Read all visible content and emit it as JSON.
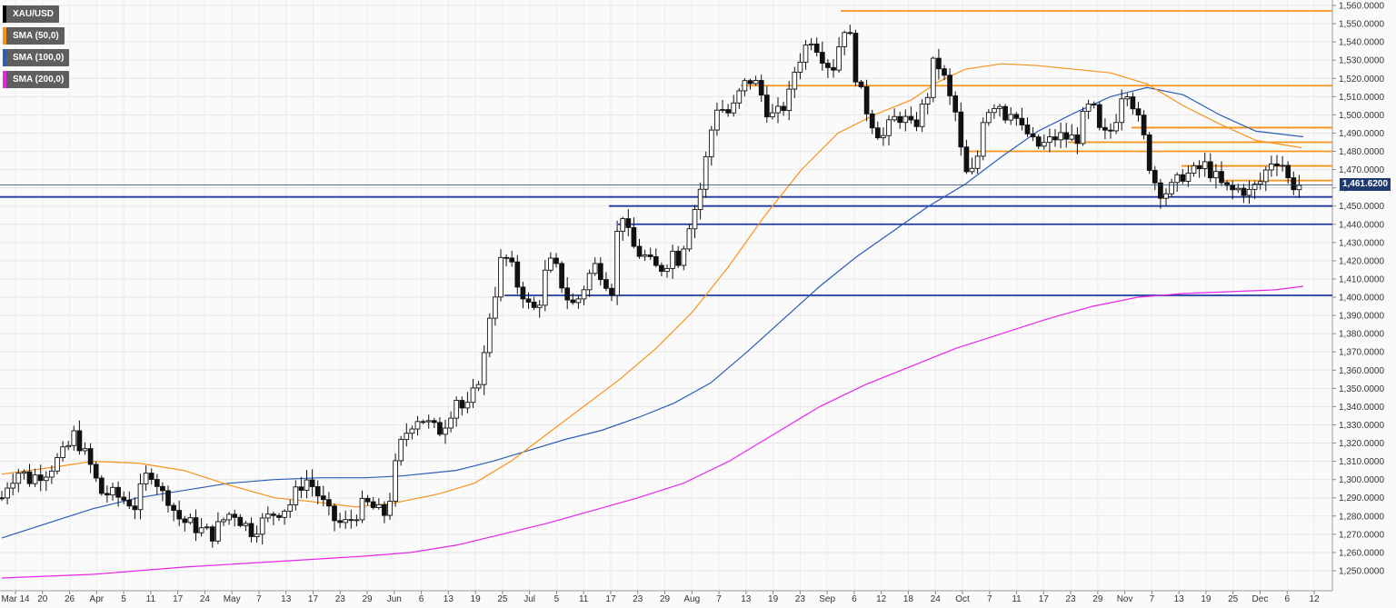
{
  "chart_data": {
    "type": "candlestick",
    "title": "XAU/USD",
    "symbol": "XAU/USD",
    "timeframe": "daily",
    "y_axis_side": "right",
    "ylim": [
      1245,
      1565
    ],
    "y_tick_step": 10,
    "y_tick_format": "0,000.0000",
    "last_price_label": "1,461.6200",
    "last_price": 1461.62,
    "x_tick_labels": [
      "Mar 14",
      "20",
      "26",
      "Apr",
      "5",
      "11",
      "17",
      "24",
      "May",
      "7",
      "13",
      "17",
      "23",
      "29",
      "Jun",
      "6",
      "13",
      "19",
      "25",
      "Jul",
      "5",
      "11",
      "17",
      "23",
      "29",
      "Aug",
      "7",
      "13",
      "19",
      "23",
      "Sep",
      "6",
      "12",
      "18",
      "24",
      "Oct",
      "7",
      "11",
      "17",
      "23",
      "29",
      "Nov",
      "7",
      "13",
      "19",
      "25",
      "Dec",
      "6",
      "12"
    ],
    "legend": [
      {
        "label": "XAU/USD",
        "color": "#000000"
      },
      {
        "label": "SMA (50,0)",
        "color": "#f7931a"
      },
      {
        "label": "SMA (100,0)",
        "color": "#2b5cb8"
      },
      {
        "label": "SMA (200,0)",
        "color": "#e826e8"
      }
    ],
    "close_path": [
      [
        0,
        1290
      ],
      [
        8,
        1300
      ],
      [
        20,
        1305
      ],
      [
        30,
        1300
      ],
      [
        40,
        1303
      ],
      [
        50,
        1305
      ],
      [
        60,
        1310
      ],
      [
        70,
        1315
      ],
      [
        80,
        1325
      ],
      [
        90,
        1315
      ],
      [
        100,
        1305
      ],
      [
        108,
        1293
      ],
      [
        120,
        1292
      ],
      [
        130,
        1290
      ],
      [
        140,
        1288
      ],
      [
        148,
        1285
      ],
      [
        156,
        1300
      ],
      [
        166,
        1305
      ],
      [
        176,
        1292
      ],
      [
        184,
        1290
      ],
      [
        192,
        1280
      ],
      [
        200,
        1277
      ],
      [
        210,
        1275
      ],
      [
        220,
        1272
      ],
      [
        232,
        1270
      ],
      [
        244,
        1278
      ],
      [
        254,
        1283
      ],
      [
        264,
        1277
      ],
      [
        274,
        1272
      ],
      [
        282,
        1275
      ],
      [
        290,
        1278
      ],
      [
        300,
        1282
      ],
      [
        310,
        1284
      ],
      [
        318,
        1287
      ],
      [
        328,
        1297
      ],
      [
        336,
        1300
      ],
      [
        344,
        1295
      ],
      [
        352,
        1288
      ],
      [
        360,
        1281
      ],
      [
        368,
        1277
      ],
      [
        376,
        1275
      ],
      [
        384,
        1278
      ],
      [
        392,
        1283
      ],
      [
        400,
        1287
      ],
      [
        410,
        1284
      ],
      [
        420,
        1280
      ],
      [
        428,
        1292
      ],
      [
        436,
        1315
      ],
      [
        444,
        1325
      ],
      [
        452,
        1332
      ],
      [
        460,
        1335
      ],
      [
        470,
        1330
      ],
      [
        480,
        1326
      ],
      [
        490,
        1333
      ],
      [
        500,
        1345
      ],
      [
        510,
        1336
      ],
      [
        520,
        1348
      ],
      [
        530,
        1365
      ],
      [
        538,
        1395
      ],
      [
        544,
        1405
      ],
      [
        550,
        1422
      ],
      [
        558,
        1420
      ],
      [
        566,
        1408
      ],
      [
        574,
        1402
      ],
      [
        582,
        1392
      ],
      [
        590,
        1395
      ],
      [
        598,
        1413
      ],
      [
        606,
        1420
      ],
      [
        614,
        1410
      ],
      [
        622,
        1400
      ],
      [
        630,
        1395
      ],
      [
        638,
        1403
      ],
      [
        646,
        1412
      ],
      [
        654,
        1418
      ],
      [
        664,
        1410
      ],
      [
        672,
        1404
      ],
      [
        678,
        1440
      ],
      [
        684,
        1447
      ],
      [
        690,
        1432
      ],
      [
        698,
        1425
      ],
      [
        706,
        1423
      ],
      [
        714,
        1418
      ],
      [
        722,
        1415
      ],
      [
        730,
        1418
      ],
      [
        738,
        1425
      ],
      [
        746,
        1420
      ],
      [
        754,
        1438
      ],
      [
        762,
        1448
      ],
      [
        770,
        1462
      ],
      [
        778,
        1485
      ],
      [
        786,
        1505
      ],
      [
        794,
        1503
      ],
      [
        802,
        1500
      ],
      [
        810,
        1510
      ],
      [
        818,
        1517
      ],
      [
        826,
        1520
      ],
      [
        834,
        1513
      ],
      [
        842,
        1503
      ],
      [
        850,
        1498
      ],
      [
        858,
        1503
      ],
      [
        866,
        1510
      ],
      [
        874,
        1528
      ],
      [
        882,
        1535
      ],
      [
        890,
        1543
      ],
      [
        898,
        1537
      ],
      [
        906,
        1530
      ],
      [
        914,
        1525
      ],
      [
        922,
        1540
      ],
      [
        930,
        1553
      ],
      [
        938,
        1525
      ],
      [
        946,
        1510
      ],
      [
        954,
        1500
      ],
      [
        962,
        1492
      ],
      [
        970,
        1488
      ],
      [
        978,
        1495
      ],
      [
        986,
        1500
      ],
      [
        994,
        1497
      ],
      [
        1002,
        1492
      ],
      [
        1010,
        1500
      ],
      [
        1018,
        1510
      ],
      [
        1026,
        1530
      ],
      [
        1034,
        1525
      ],
      [
        1042,
        1510
      ],
      [
        1050,
        1500
      ],
      [
        1058,
        1470
      ],
      [
        1064,
        1465
      ],
      [
        1072,
        1472
      ],
      [
        1080,
        1500
      ],
      [
        1088,
        1505
      ],
      [
        1096,
        1508
      ],
      [
        1104,
        1500
      ],
      [
        1112,
        1505
      ],
      [
        1120,
        1492
      ],
      [
        1128,
        1490
      ],
      [
        1136,
        1483
      ],
      [
        1144,
        1483
      ],
      [
        1152,
        1485
      ],
      [
        1160,
        1488
      ],
      [
        1168,
        1488
      ],
      [
        1176,
        1487
      ],
      [
        1184,
        1488
      ],
      [
        1192,
        1502
      ],
      [
        1200,
        1505
      ],
      [
        1208,
        1490
      ],
      [
        1216,
        1488
      ],
      [
        1224,
        1495
      ],
      [
        1232,
        1512
      ],
      [
        1240,
        1515
      ],
      [
        1248,
        1500
      ],
      [
        1256,
        1488
      ],
      [
        1264,
        1470
      ],
      [
        1270,
        1462
      ],
      [
        1276,
        1458
      ],
      [
        1284,
        1458
      ],
      [
        1292,
        1462
      ],
      [
        1300,
        1468
      ],
      [
        1308,
        1467
      ],
      [
        1316,
        1470
      ],
      [
        1324,
        1472
      ],
      [
        1332,
        1468
      ],
      [
        1340,
        1462
      ],
      [
        1348,
        1459
      ],
      [
        1356,
        1458
      ],
      [
        1364,
        1460
      ],
      [
        1372,
        1457
      ],
      [
        1380,
        1461
      ],
      [
        1388,
        1465
      ],
      [
        1394,
        1474
      ],
      [
        1400,
        1476
      ],
      [
        1408,
        1475
      ],
      [
        1414,
        1465
      ],
      [
        1420,
        1462
      ],
      [
        1428,
        1461.6
      ],
      [
        1432,
        1462
      ]
    ],
    "sma_50": [
      [
        0,
        1303
      ],
      [
        60,
        1307
      ],
      [
        100,
        1310
      ],
      [
        150,
        1309
      ],
      [
        200,
        1305
      ],
      [
        250,
        1297
      ],
      [
        300,
        1290
      ],
      [
        340,
        1288
      ],
      [
        390,
        1285
      ],
      [
        430,
        1287
      ],
      [
        480,
        1292
      ],
      [
        520,
        1298
      ],
      [
        560,
        1310
      ],
      [
        600,
        1325
      ],
      [
        640,
        1340
      ],
      [
        680,
        1355
      ],
      [
        720,
        1372
      ],
      [
        760,
        1392
      ],
      [
        800,
        1417
      ],
      [
        840,
        1445
      ],
      [
        880,
        1470
      ],
      [
        920,
        1490
      ],
      [
        960,
        1500
      ],
      [
        1000,
        1508
      ],
      [
        1030,
        1518
      ],
      [
        1060,
        1525
      ],
      [
        1100,
        1528
      ],
      [
        1140,
        1527
      ],
      [
        1180,
        1525
      ],
      [
        1220,
        1523
      ],
      [
        1260,
        1517
      ],
      [
        1300,
        1505
      ],
      [
        1340,
        1495
      ],
      [
        1380,
        1486
      ],
      [
        1430,
        1482
      ]
    ],
    "sma_100": [
      [
        0,
        1268
      ],
      [
        50,
        1276
      ],
      [
        100,
        1284
      ],
      [
        150,
        1290
      ],
      [
        200,
        1294
      ],
      [
        250,
        1298
      ],
      [
        300,
        1300
      ],
      [
        350,
        1301
      ],
      [
        400,
        1301
      ],
      [
        440,
        1302
      ],
      [
        500,
        1305
      ],
      [
        540,
        1310
      ],
      [
        580,
        1316
      ],
      [
        620,
        1322
      ],
      [
        660,
        1327
      ],
      [
        700,
        1334
      ],
      [
        740,
        1342
      ],
      [
        780,
        1353
      ],
      [
        820,
        1370
      ],
      [
        860,
        1388
      ],
      [
        900,
        1406
      ],
      [
        940,
        1422
      ],
      [
        980,
        1436
      ],
      [
        1020,
        1450
      ],
      [
        1060,
        1462
      ],
      [
        1100,
        1477
      ],
      [
        1140,
        1491
      ],
      [
        1180,
        1501
      ],
      [
        1220,
        1510
      ],
      [
        1260,
        1515
      ],
      [
        1300,
        1511
      ],
      [
        1340,
        1500
      ],
      [
        1380,
        1491
      ],
      [
        1432,
        1488
      ]
    ],
    "sma_200": [
      [
        0,
        1246
      ],
      [
        100,
        1248
      ],
      [
        200,
        1252
      ],
      [
        300,
        1255
      ],
      [
        400,
        1258
      ],
      [
        450,
        1260
      ],
      [
        500,
        1264
      ],
      [
        550,
        1270
      ],
      [
        600,
        1276
      ],
      [
        650,
        1283
      ],
      [
        700,
        1290
      ],
      [
        750,
        1298
      ],
      [
        800,
        1310
      ],
      [
        850,
        1325
      ],
      [
        900,
        1340
      ],
      [
        950,
        1352
      ],
      [
        1000,
        1362
      ],
      [
        1050,
        1372
      ],
      [
        1100,
        1380
      ],
      [
        1150,
        1388
      ],
      [
        1200,
        1395
      ],
      [
        1250,
        1400
      ],
      [
        1300,
        1402
      ],
      [
        1350,
        1403
      ],
      [
        1400,
        1404
      ],
      [
        1432,
        1406
      ]
    ],
    "horizontal_levels": [
      {
        "color": "#f7931a",
        "price": 1557,
        "x_from": 925
      },
      {
        "color": "#f7931a",
        "price": 1516,
        "x_from": 815
      },
      {
        "color": "#f7931a",
        "price": 1493,
        "x_from": 1245
      },
      {
        "color": "#f7931a",
        "price": 1485,
        "x_from": 1175
      },
      {
        "color": "#f7931a",
        "price": 1480,
        "x_from": 1065
      },
      {
        "color": "#f7931a",
        "price": 1472,
        "x_from": 1300
      },
      {
        "color": "#f7931a",
        "price": 1464,
        "x_from": 1345
      },
      {
        "color": "#1f3a9e",
        "price": 1455,
        "x_from": 0
      },
      {
        "color": "#1f3a9e",
        "price": 1450,
        "x_from": 670
      },
      {
        "color": "#1f3a9e",
        "price": 1440,
        "x_from": 680
      },
      {
        "color": "#1f3a9e",
        "price": 1401,
        "x_from": 555
      }
    ]
  }
}
